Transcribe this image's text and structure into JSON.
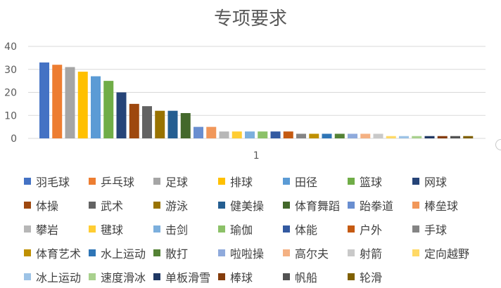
{
  "chart_data": {
    "type": "bar",
    "title": "专项要求",
    "categories": [
      "1"
    ],
    "ylim": [
      0,
      40
    ],
    "yticks": [
      0,
      10,
      20,
      30,
      40
    ],
    "grid": true,
    "legend_position": "bottom",
    "series": [
      {
        "name": "羽毛球",
        "values": [
          33
        ],
        "color": "#4472C4"
      },
      {
        "name": "乒乓球",
        "values": [
          32
        ],
        "color": "#ED7D31"
      },
      {
        "name": "足球",
        "values": [
          31
        ],
        "color": "#A5A5A5"
      },
      {
        "name": "排球",
        "values": [
          29
        ],
        "color": "#FFC000"
      },
      {
        "name": "田径",
        "values": [
          27
        ],
        "color": "#5B9BD5"
      },
      {
        "name": "篮球",
        "values": [
          25
        ],
        "color": "#70AD47"
      },
      {
        "name": "网球",
        "values": [
          20
        ],
        "color": "#264478"
      },
      {
        "name": "体操",
        "values": [
          15
        ],
        "color": "#9E480E"
      },
      {
        "name": "武术",
        "values": [
          14
        ],
        "color": "#636363"
      },
      {
        "name": "游泳",
        "values": [
          12
        ],
        "color": "#997300"
      },
      {
        "name": "健美操",
        "values": [
          12
        ],
        "color": "#255E91"
      },
      {
        "name": "体育舞蹈",
        "values": [
          11
        ],
        "color": "#43682B"
      },
      {
        "name": "跆拳道",
        "values": [
          5
        ],
        "color": "#698ED0"
      },
      {
        "name": "棒垒球",
        "values": [
          5
        ],
        "color": "#F1975A"
      },
      {
        "name": "攀岩",
        "values": [
          3
        ],
        "color": "#B7B7B7"
      },
      {
        "name": "毽球",
        "values": [
          3
        ],
        "color": "#FFCD33"
      },
      {
        "name": "击剑",
        "values": [
          3
        ],
        "color": "#7CAFDD"
      },
      {
        "name": "瑜伽",
        "values": [
          3
        ],
        "color": "#8CC168"
      },
      {
        "name": "体能",
        "values": [
          3
        ],
        "color": "#335AA1"
      },
      {
        "name": "户外",
        "values": [
          3
        ],
        "color": "#C55A11"
      },
      {
        "name": "手球",
        "values": [
          2
        ],
        "color": "#848484"
      },
      {
        "name": "体育艺术",
        "values": [
          2
        ],
        "color": "#BF9000"
      },
      {
        "name": "水上运动",
        "values": [
          2
        ],
        "color": "#2E75B6"
      },
      {
        "name": "散打",
        "values": [
          2
        ],
        "color": "#548235"
      },
      {
        "name": "啦啦操",
        "values": [
          2
        ],
        "color": "#8FAADC"
      },
      {
        "name": "高尔夫",
        "values": [
          2
        ],
        "color": "#F4B183"
      },
      {
        "name": "射箭",
        "values": [
          2
        ],
        "color": "#C9C9C9"
      },
      {
        "name": "定向越野",
        "values": [
          1
        ],
        "color": "#FFD966"
      },
      {
        "name": "冰上运动",
        "values": [
          1
        ],
        "color": "#9DC3E6"
      },
      {
        "name": "速度滑冰",
        "values": [
          1
        ],
        "color": "#A9D18E"
      },
      {
        "name": "单板滑雪",
        "values": [
          1
        ],
        "color": "#203864"
      },
      {
        "name": "棒球",
        "values": [
          1
        ],
        "color": "#843C0C"
      },
      {
        "name": "帆船",
        "values": [
          1
        ],
        "color": "#525252"
      },
      {
        "name": "轮滑",
        "values": [
          1
        ],
        "color": "#7F6000"
      }
    ]
  }
}
